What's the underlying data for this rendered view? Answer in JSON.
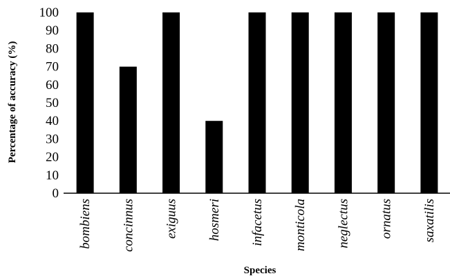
{
  "chart_data": {
    "type": "bar",
    "categories": [
      "bombiens",
      "concinnus",
      "exiguus",
      "hosmeri",
      "infacetus",
      "monticola",
      "neglectus",
      "ornatus",
      "saxatilis"
    ],
    "values": [
      100,
      70,
      100,
      40,
      100,
      100,
      100,
      100,
      100
    ],
    "title": "",
    "xlabel": "Species",
    "ylabel": "Percentage of accuracy (%)",
    "ylim": [
      0,
      100
    ],
    "yticks": [
      0,
      10,
      20,
      30,
      40,
      50,
      60,
      70,
      80,
      90,
      100
    ],
    "grid": false,
    "legend": "none",
    "bar_color": "#000000"
  }
}
